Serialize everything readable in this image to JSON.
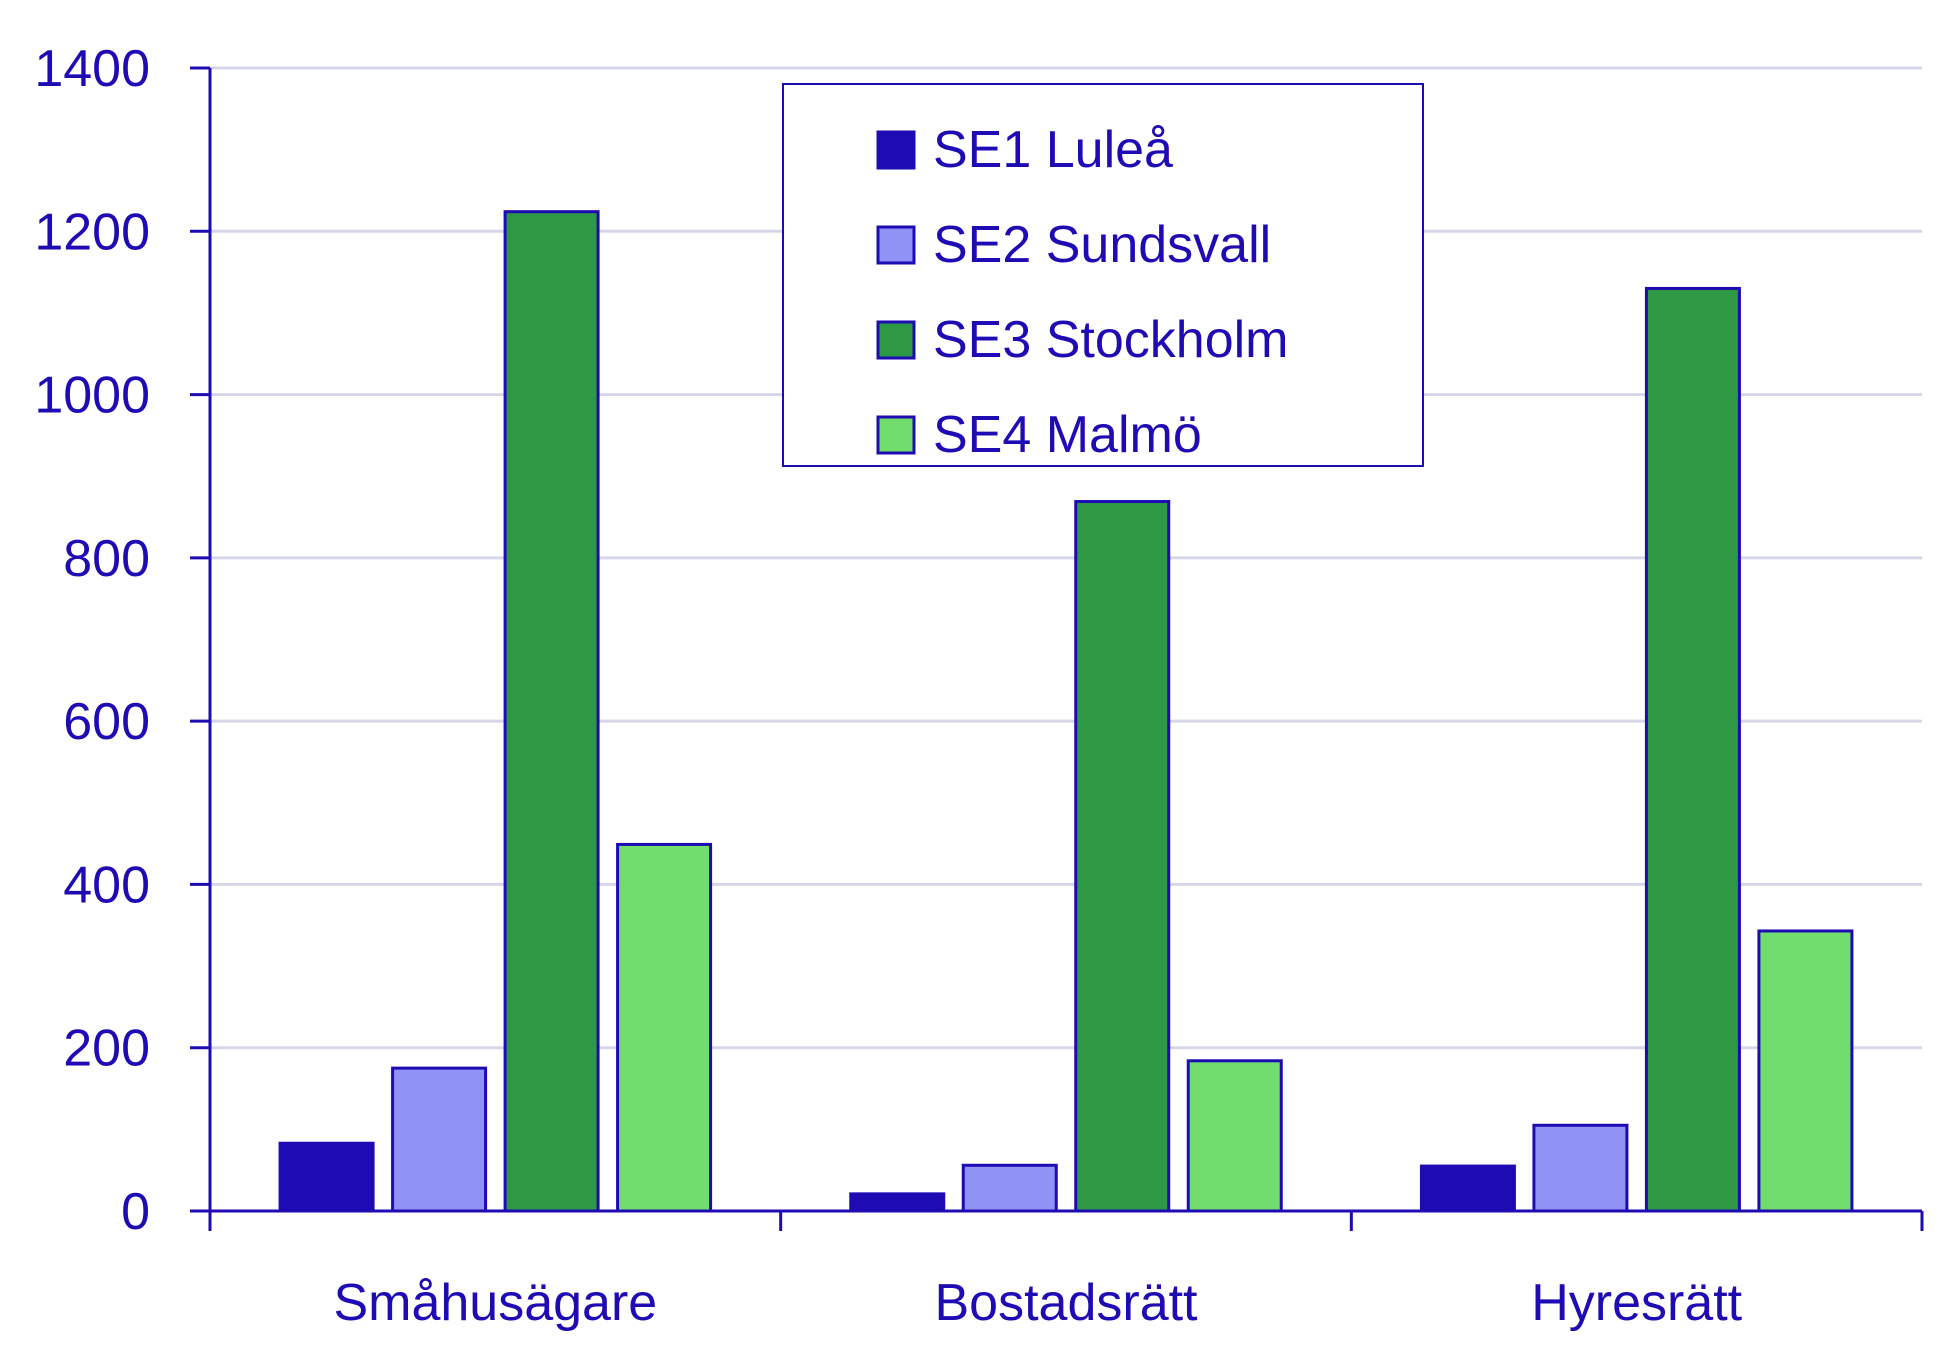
{
  "chart_data": {
    "type": "bar",
    "title": "",
    "xlabel": "",
    "ylabel": "",
    "categories": [
      "Småhusägare",
      "Bostadsrätt",
      "Hyresrätt"
    ],
    "series": [
      {
        "name": "SE1 Luleå",
        "values": [
          83,
          21,
          55
        ],
        "color": "#1e0bb3"
      },
      {
        "name": "SE2 Sundsvall",
        "values": [
          175,
          56,
          105
        ],
        "color": "#9192f5"
      },
      {
        "name": "SE3 Stockholm",
        "values": [
          1224,
          869,
          1130
        ],
        "color": "#2e9944"
      },
      {
        "name": "SE4 Malmö",
        "values": [
          449,
          184,
          343
        ],
        "color": "#70dd6c"
      }
    ],
    "ylim": [
      0,
      1400
    ],
    "yticks": [
      0,
      200,
      400,
      600,
      800,
      1000,
      1200,
      1400
    ],
    "grid": true,
    "legend_position": "top-center"
  },
  "colors": {
    "text": "#1e0bb3",
    "axis": "#1e0bb3",
    "grid": "#d6d6ea",
    "bar_outline": "#1e0bb3"
  }
}
